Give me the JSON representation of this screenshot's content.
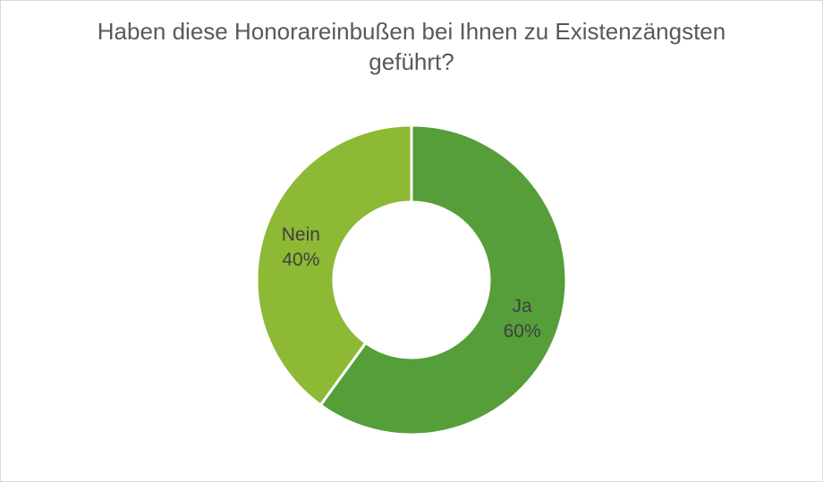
{
  "chart_data": {
    "type": "pie",
    "variant": "donut",
    "title_lines": [
      "Haben diese Honorareinbußen bei Ihnen zu Existenzängsten",
      "geführt?"
    ],
    "slices": [
      {
        "label": "Ja",
        "percent_label": "60%",
        "value": 60,
        "color": "#559e3a"
      },
      {
        "label": "Nein",
        "percent_label": "40%",
        "value": 40,
        "color": "#8db934"
      }
    ],
    "start_angle_deg": 0,
    "direction": "clockwise",
    "legend": "none"
  },
  "colors": {
    "background": "#ffffff",
    "border": "#d9d9d9",
    "title": "#595959",
    "label": "#404040",
    "separator": "#ffffff"
  }
}
